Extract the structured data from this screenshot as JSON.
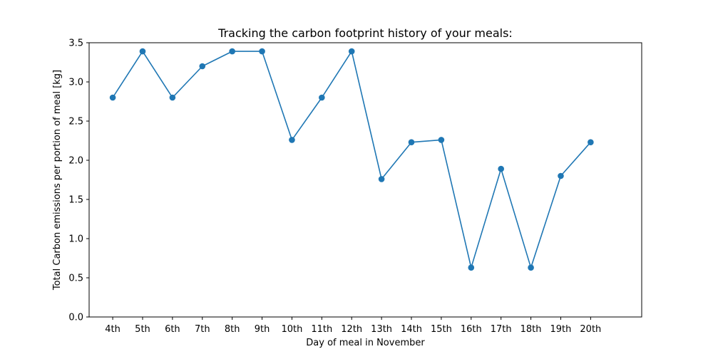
{
  "chart_data": {
    "type": "line",
    "title": "Tracking the carbon footprint history of your meals:",
    "xlabel": "Day of meal in November",
    "ylabel": "Total Carbon emissions per portion of meal [kg]",
    "categories": [
      "4th",
      "5th",
      "6th",
      "7th",
      "8th",
      "9th",
      "10th",
      "11th",
      "12th",
      "13th",
      "14th",
      "15th",
      "16th",
      "17th",
      "18th",
      "19th",
      "20th"
    ],
    "series": [
      {
        "values": [
          2.8,
          3.39,
          2.8,
          3.2,
          3.39,
          3.39,
          2.26,
          2.8,
          3.39,
          1.76,
          2.23,
          2.26,
          0.63,
          1.89,
          0.63,
          1.8,
          2.23
        ],
        "color": "#1f77b4",
        "marker": "circle"
      }
    ],
    "ylim": [
      0,
      3.5
    ],
    "yticks": [
      0.0,
      0.5,
      1.0,
      1.5,
      2.0,
      2.5,
      3.0,
      3.5
    ],
    "ytick_labels": [
      "0.0",
      "0.5",
      "1.0",
      "1.5",
      "2.0",
      "2.5",
      "3.0",
      "3.5"
    ],
    "grid": false,
    "legend": false
  }
}
